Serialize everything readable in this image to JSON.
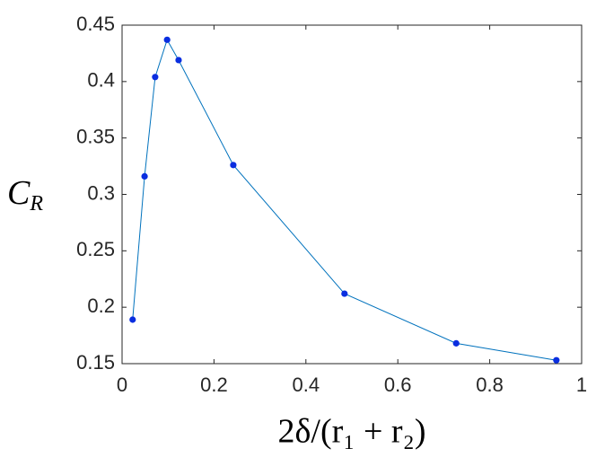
{
  "chart_data": {
    "type": "line",
    "xlabel": "2δ/(r₁ + r₂)",
    "ylabel": [
      "C",
      "R"
    ],
    "x": [
      0.023,
      0.049,
      0.072,
      0.098,
      0.123,
      0.242,
      0.484,
      0.727,
      0.945
    ],
    "series": [
      {
        "color": "#0072bd",
        "marker_color": "#0a2ee0",
        "values": [
          0.189,
          0.316,
          0.404,
          0.437,
          0.419,
          0.326,
          0.212,
          0.168,
          0.153
        ]
      }
    ],
    "xlim": [
      0,
      1
    ],
    "xticks": [
      0,
      0.2,
      0.4,
      0.6,
      0.8,
      1
    ],
    "ylim": [
      0.15,
      0.45
    ],
    "yticks": [
      0.15,
      0.2,
      0.25,
      0.3,
      0.35,
      0.4,
      0.45
    ],
    "grid": false
  }
}
